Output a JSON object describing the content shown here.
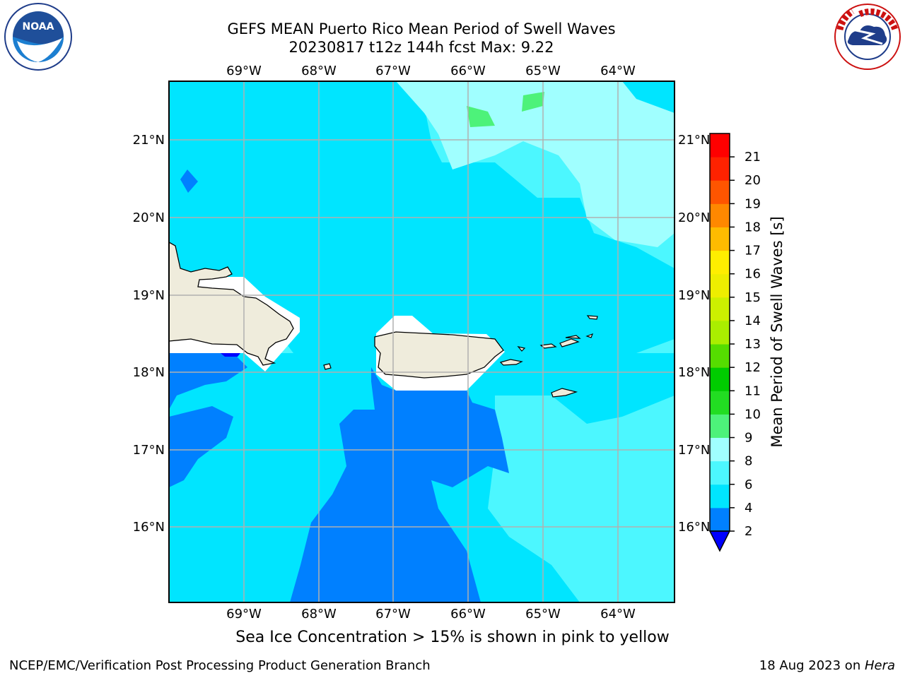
{
  "title": {
    "line1": "GEFS MEAN Puerto Rico Mean Period of Swell Waves",
    "line2": "20230817 t12z 144h fcst   Max: 9.22"
  },
  "map": {
    "lon_labels": [
      "69°W",
      "68°W",
      "67°W",
      "66°W",
      "65°W",
      "64°W"
    ],
    "lat_labels": [
      "21°N",
      "20°N",
      "19°N",
      "18°N",
      "17°N",
      "16°N"
    ],
    "note": "Sea Ice Concentration > 15% is shown in pink to yellow"
  },
  "colorbar": {
    "label": "Mean Period of Swell Waves [s]",
    "ticks": [
      "2",
      "4",
      "6",
      "8",
      "9",
      "10",
      "11",
      "12",
      "13",
      "14",
      "15",
      "16",
      "17",
      "18",
      "19",
      "20",
      "21"
    ],
    "colors": [
      "#0080ff",
      "#00e5ff",
      "#4cf7ff",
      "#a0ffff",
      "#4df27a",
      "#22dd22",
      "#00cc00",
      "#55dd00",
      "#aaee00",
      "#ccf000",
      "#eeee00",
      "#ffee00",
      "#ffbb00",
      "#ff8800",
      "#ff5500",
      "#ff2200",
      "#ff0000"
    ],
    "under_color": "#0000ff"
  },
  "logos": {
    "noaa_text": "NOAA",
    "nws_text": "NATIONAL WEATHER SERVICE"
  },
  "footer": {
    "left": "NCEP/EMC/Verification Post Processing Product Generation Branch",
    "right_date": "18 Aug 2023 on ",
    "right_machine": "Hera"
  }
}
